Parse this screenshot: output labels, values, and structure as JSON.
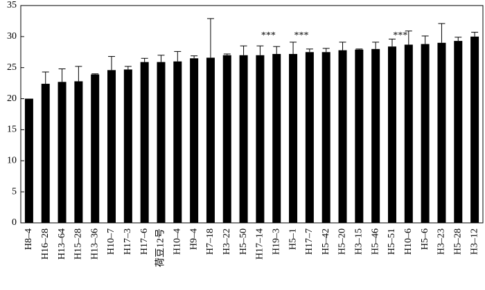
{
  "chart_data": {
    "type": "bar",
    "categories": [
      "H8–4",
      "H16–28",
      "H13–64",
      "H15–28",
      "H13–36",
      "H10–7",
      "H17–3",
      "H17–6",
      "荷豆12号",
      "H10–4",
      "H9–4",
      "H7–18",
      "H3–22",
      "H5–50",
      "H17–14",
      "H19–3",
      "H5–1",
      "H17–7",
      "H5–42",
      "H5–20",
      "H3–15",
      "H5–46",
      "H5–51",
      "H10–6",
      "H5–6",
      "H3–23",
      "H5–28",
      "H3–12"
    ],
    "values": [
      20.0,
      22.4,
      22.7,
      22.8,
      23.9,
      24.6,
      24.7,
      25.9,
      25.9,
      26.0,
      26.5,
      26.6,
      27.0,
      27.0,
      27.0,
      27.2,
      27.2,
      27.5,
      27.5,
      27.8,
      27.9,
      28.0,
      28.4,
      28.7,
      28.8,
      29.0,
      29.3,
      30.0
    ],
    "errors": [
      0,
      1.9,
      2.1,
      2.4,
      0.1,
      2.2,
      0.5,
      0.6,
      1.1,
      1.6,
      0.4,
      6.3,
      0.2,
      1.5,
      1.5,
      1.2,
      1.9,
      0.5,
      0.6,
      1.3,
      0.1,
      1.1,
      1.2,
      2.2,
      1.3,
      3.1,
      0.6,
      0.7
    ],
    "color": "#000000",
    "ylim": [
      0,
      35
    ],
    "yticks": [
      0,
      5,
      10,
      15,
      20,
      25,
      30,
      35
    ],
    "annotations": [
      "***",
      "***",
      "***"
    ]
  }
}
